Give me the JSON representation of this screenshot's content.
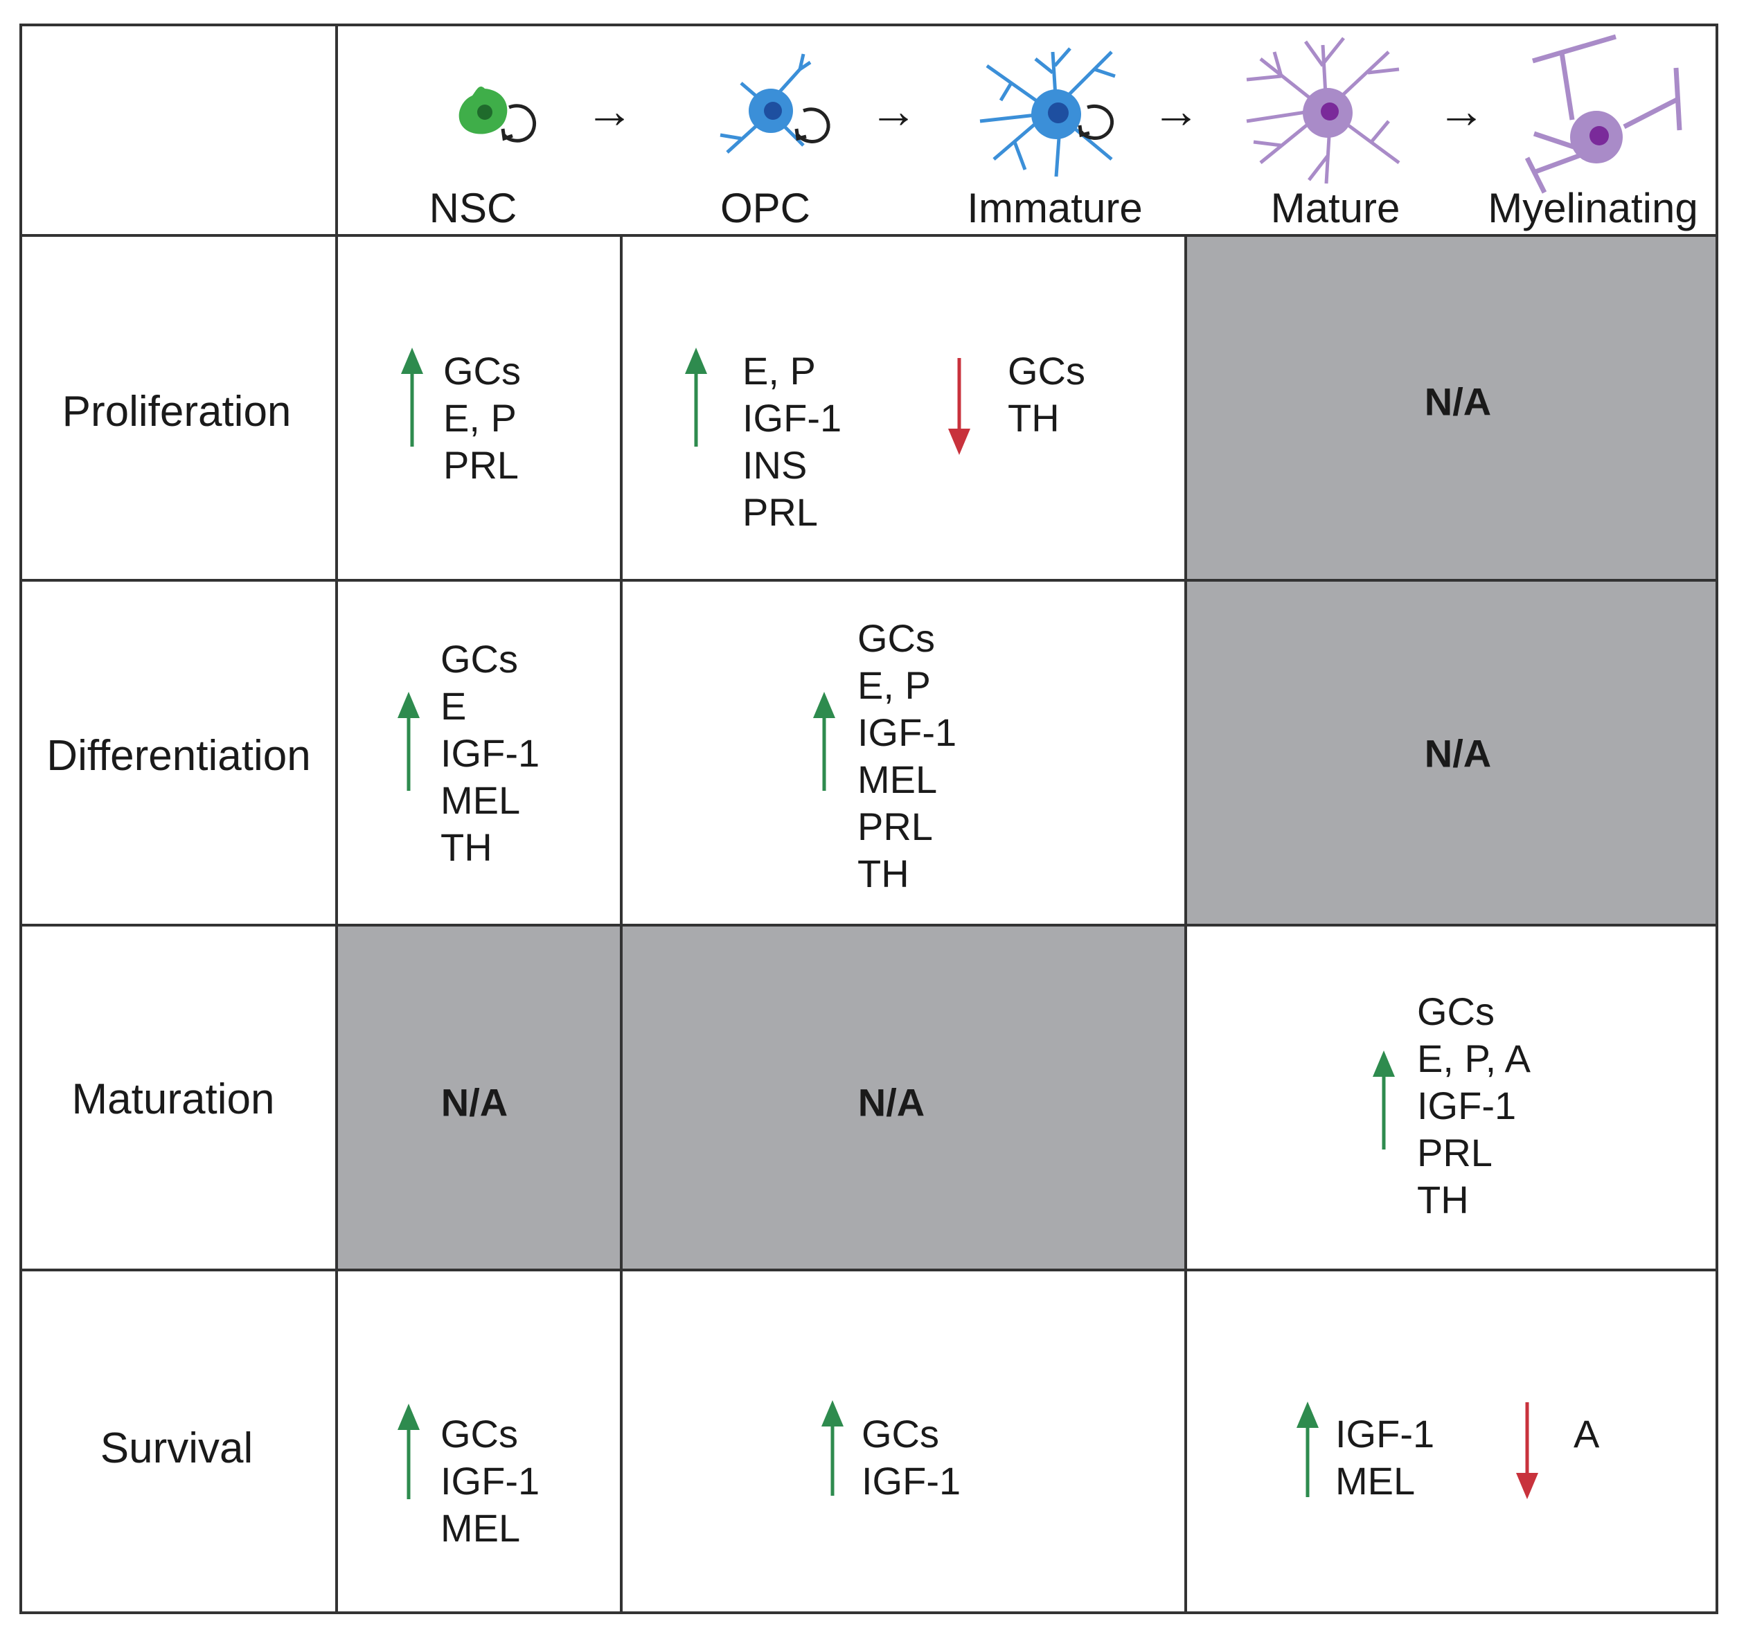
{
  "colors": {
    "up": "#2e8b4e",
    "down": "#c8323c",
    "na_fill": "#a9aaad",
    "grid": "#333333"
  },
  "header": {
    "stages": [
      {
        "label": "NSC",
        "icon": "nsc-cell-icon",
        "color": "#3fae49"
      },
      {
        "label": "OPC",
        "icon": "opc-cell-icon",
        "color": "#3b8fd8"
      },
      {
        "label": "Immature",
        "icon": "immature-oligodendrocyte-icon",
        "color": "#3b8fd8"
      },
      {
        "label": "Mature",
        "icon": "mature-oligodendrocyte-icon",
        "color": "#a98bc8"
      },
      {
        "label": "Myelinating",
        "icon": "myelinating-oligodendrocyte-icon",
        "color": "#a98bc8"
      }
    ],
    "transition_arrow": "→"
  },
  "rows": {
    "proliferation": {
      "label": "Proliferation",
      "nsc_up": [
        "GCs",
        "E, P",
        "PRL"
      ],
      "opc_up": [
        "E, P",
        "IGF-1",
        "INS",
        "PRL"
      ],
      "opc_down": [
        "GCs",
        "TH"
      ],
      "late": "N/A"
    },
    "differentiation": {
      "label": "Differentiation",
      "nsc_up": [
        "GCs",
        "E",
        "IGF-1",
        "MEL",
        "TH"
      ],
      "opc_up": [
        "GCs",
        "E, P",
        "IGF-1",
        "MEL",
        "PRL",
        "TH"
      ],
      "late": "N/A"
    },
    "maturation": {
      "label": "Maturation",
      "nsc": "N/A",
      "opc": "N/A",
      "late_up": [
        "GCs",
        "E, P, A",
        "IGF-1",
        "PRL",
        "TH"
      ]
    },
    "survival": {
      "label": "Survival",
      "nsc_up": [
        "GCs",
        "IGF-1",
        "MEL"
      ],
      "opc_up": [
        "GCs",
        "IGF-1"
      ],
      "late_up": [
        "IGF-1",
        "MEL"
      ],
      "late_down": [
        "A"
      ]
    }
  }
}
